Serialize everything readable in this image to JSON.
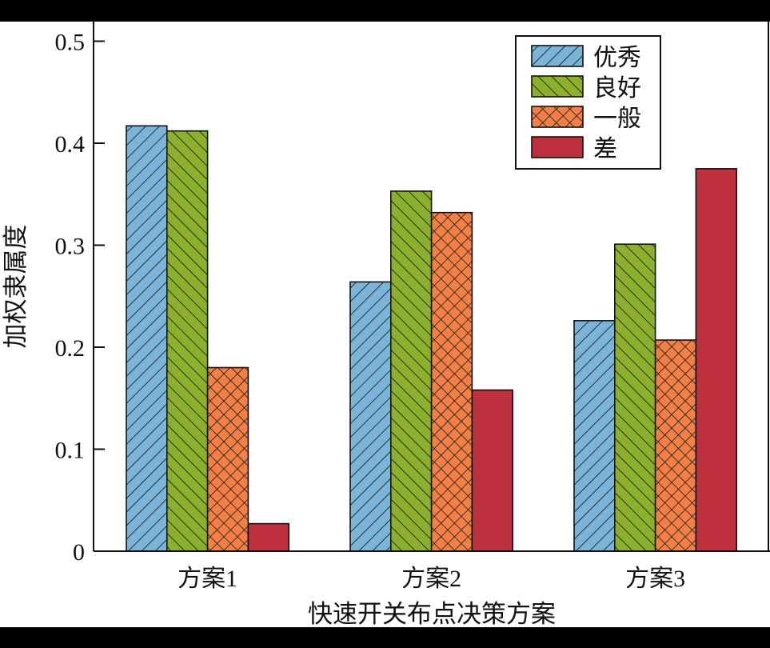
{
  "chart_data": {
    "type": "bar",
    "title": "",
    "xlabel": "快速开关布点决策方案",
    "ylabel": "加权隶属度",
    "categories": [
      "方案1",
      "方案2",
      "方案3"
    ],
    "series": [
      {
        "name": "优秀",
        "values": [
          0.417,
          0.264,
          0.226
        ],
        "color": "#7ab4d9",
        "pattern": "diag-right"
      },
      {
        "name": "良好",
        "values": [
          0.412,
          0.353,
          0.301
        ],
        "color": "#8cb02d",
        "pattern": "diag-left"
      },
      {
        "name": "一般",
        "values": [
          0.18,
          0.332,
          0.207
        ],
        "color": "#f08048",
        "pattern": "crosshatch"
      },
      {
        "name": "差",
        "values": [
          0.027,
          0.158,
          0.375
        ],
        "color": "#c0313f",
        "pattern": "solid"
      }
    ],
    "ylim": [
      0,
      0.52
    ],
    "yticks": [
      "0",
      "0.1",
      "0.2",
      "0.3",
      "0.4",
      "0.5"
    ],
    "grid": false,
    "legend_position": "upper right"
  }
}
